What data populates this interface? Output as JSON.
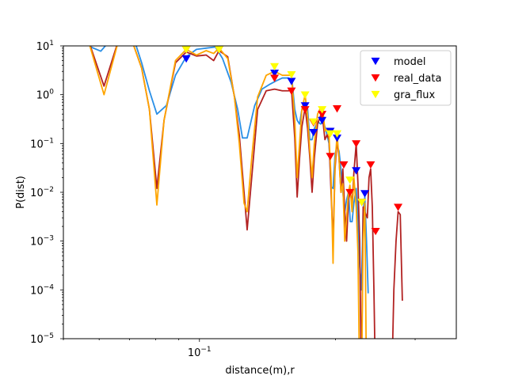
{
  "chart_data": {
    "type": "line",
    "xlabel": "distance(m),r",
    "ylabel": "P(dist)",
    "xscale": "log",
    "yscale": "log",
    "xlim": [
      0.05,
      0.37
    ],
    "ylim": [
      1e-05,
      10
    ],
    "grid": false,
    "legend_position": "top-right",
    "x_tick_labels": [
      {
        "value": 0.1,
        "label": "10",
        "exp": "−1"
      }
    ],
    "y_tick_labels": [
      {
        "value": 1e-05,
        "label": "10",
        "exp": "−5"
      },
      {
        "value": 0.0001,
        "label": "10",
        "exp": "−4"
      },
      {
        "value": 0.001,
        "label": "10",
        "exp": "−3"
      },
      {
        "value": 0.01,
        "label": "10",
        "exp": "−2"
      },
      {
        "value": 0.1,
        "label": "10",
        "exp": "−1"
      },
      {
        "value": 1,
        "label": "10",
        "exp": "0"
      },
      {
        "value": 10,
        "label": "10",
        "exp": "1"
      }
    ],
    "series": [
      {
        "name": "model",
        "color": "#0000ff",
        "line_color": "#2a8fe6",
        "marker": "triangle-down",
        "points": [
          [
            0.0935,
            5.5
          ],
          [
            0.1105,
            9.2
          ],
          [
            0.1466,
            2.8
          ],
          [
            0.1598,
            1.9
          ],
          [
            0.1713,
            0.6
          ],
          [
            0.1788,
            0.17
          ],
          [
            0.1868,
            0.3
          ],
          [
            0.1947,
            0.18
          ],
          [
            0.2016,
            0.13
          ],
          [
            0.2222,
            0.028
          ],
          [
            0.2322,
            0.0095
          ]
        ],
        "curve": [
          [
            0.0575,
            9.5
          ],
          [
            0.0605,
            7.8
          ],
          [
            0.063,
            12
          ],
          [
            0.068,
            15
          ],
          [
            0.072,
            12
          ],
          [
            0.0745,
            4.5
          ],
          [
            0.0775,
            1.2
          ],
          [
            0.0805,
            0.4
          ],
          [
            0.0845,
            0.6
          ],
          [
            0.0885,
            2.5
          ],
          [
            0.0935,
            6
          ],
          [
            0.0985,
            8.5
          ],
          [
            0.1035,
            9
          ],
          [
            0.1085,
            9.5
          ],
          [
            0.1125,
            5.5
          ],
          [
            0.1175,
            1.8
          ],
          [
            0.1215,
            0.5
          ],
          [
            0.1245,
            0.13
          ],
          [
            0.1275,
            0.13
          ],
          [
            0.1325,
            0.6
          ],
          [
            0.1375,
            1.3
          ],
          [
            0.1425,
            1.6
          ],
          [
            0.1475,
            1.9
          ],
          [
            0.1525,
            2.2
          ],
          [
            0.1575,
            2.2
          ],
          [
            0.1605,
            1.7
          ],
          [
            0.1625,
            0.5
          ],
          [
            0.1645,
            0.3
          ],
          [
            0.1665,
            0.25
          ],
          [
            0.1685,
            0.5
          ],
          [
            0.1713,
            0.7
          ],
          [
            0.1735,
            0.5
          ],
          [
            0.1755,
            0.12
          ],
          [
            0.1775,
            0.12
          ],
          [
            0.1795,
            0.2
          ],
          [
            0.1825,
            0.28
          ],
          [
            0.1855,
            0.25
          ],
          [
            0.1875,
            0.3
          ],
          [
            0.1895,
            0.22
          ],
          [
            0.1915,
            0.15
          ],
          [
            0.1935,
            0.1
          ],
          [
            0.1955,
            0.013
          ],
          [
            0.1975,
            0.012
          ],
          [
            0.1995,
            0.06
          ],
          [
            0.2016,
            0.09
          ],
          [
            0.2036,
            0.07
          ],
          [
            0.2056,
            0.03
          ],
          [
            0.2076,
            0.01
          ],
          [
            0.2096,
            0.004
          ],
          [
            0.2116,
            0.007
          ],
          [
            0.2136,
            0.01
          ],
          [
            0.2156,
            0.0025
          ],
          [
            0.2176,
            0.0025
          ],
          [
            0.2196,
            0.006
          ],
          [
            0.2222,
            0.012
          ],
          [
            0.2242,
            0.003
          ],
          [
            0.2262,
            0.0003
          ],
          [
            0.2282,
            0.0001
          ],
          [
            0.2302,
            0.004
          ],
          [
            0.2322,
            0.008
          ],
          [
            0.2342,
            0.001
          ],
          [
            0.2362,
            8.5e-05
          ]
        ]
      },
      {
        "name": "real_data",
        "color": "#ff0000",
        "line_color": "#b22222",
        "marker": "triangle-down",
        "points": [
          [
            0.0935,
            8.5
          ],
          [
            0.1105,
            8.5
          ],
          [
            0.1466,
            2.2
          ],
          [
            0.1598,
            1.2
          ],
          [
            0.1713,
            0.5
          ],
          [
            0.1788,
            0.27
          ],
          [
            0.1868,
            0.4
          ],
          [
            0.1947,
            0.055
          ],
          [
            0.2016,
            0.52
          ],
          [
            0.2086,
            0.037
          ],
          [
            0.2152,
            0.01
          ],
          [
            0.2222,
            0.1
          ],
          [
            0.2286,
            0.0063
          ],
          [
            0.2392,
            0.037
          ],
          [
            0.2453,
            0.0016
          ],
          [
            0.2751,
            0.005
          ]
        ],
        "curve": [
          [
            0.0565,
            15
          ],
          [
            0.0615,
            1.5
          ],
          [
            0.0665,
            15
          ],
          [
            0.0705,
            15
          ],
          [
            0.0745,
            3.5
          ],
          [
            0.0775,
            0.5
          ],
          [
            0.0805,
            0.012
          ],
          [
            0.0835,
            0.3
          ],
          [
            0.0885,
            4.5
          ],
          [
            0.0935,
            7.5
          ],
          [
            0.0985,
            6.2
          ],
          [
            0.1035,
            6.5
          ],
          [
            0.1075,
            5
          ],
          [
            0.1105,
            8
          ],
          [
            0.1155,
            6
          ],
          [
            0.1195,
            0.9
          ],
          [
            0.1225,
            0.15
          ],
          [
            0.1255,
            0.01
          ],
          [
            0.1275,
            0.0017
          ],
          [
            0.1305,
            0.02
          ],
          [
            0.1345,
            0.5
          ],
          [
            0.1405,
            1.2
          ],
          [
            0.1466,
            1.3
          ],
          [
            0.1525,
            1.2
          ],
          [
            0.1575,
            1.2
          ],
          [
            0.1598,
            1.3
          ],
          [
            0.1625,
            0.13
          ],
          [
            0.1645,
            0.008
          ],
          [
            0.1665,
            0.05
          ],
          [
            0.1685,
            0.22
          ],
          [
            0.1713,
            0.55
          ],
          [
            0.1735,
            0.2
          ],
          [
            0.1755,
            0.05
          ],
          [
            0.1775,
            0.01
          ],
          [
            0.1795,
            0.05
          ],
          [
            0.1825,
            0.25
          ],
          [
            0.1855,
            0.38
          ],
          [
            0.1875,
            0.3
          ],
          [
            0.1895,
            0.12
          ],
          [
            0.1915,
            0.15
          ],
          [
            0.1935,
            0.12
          ],
          [
            0.1955,
            0.01
          ],
          [
            0.1975,
            0.001
          ],
          [
            0.1995,
            0.03
          ],
          [
            0.2016,
            0.12
          ],
          [
            0.2036,
            0.05
          ],
          [
            0.2056,
            0.01
          ],
          [
            0.2076,
            0.03
          ],
          [
            0.2096,
            0.004
          ],
          [
            0.2116,
            0.001
          ],
          [
            0.2136,
            0.007
          ],
          [
            0.2156,
            0.01
          ],
          [
            0.2176,
            0.006
          ],
          [
            0.2196,
            0.025
          ],
          [
            0.2222,
            0.1
          ],
          [
            0.2242,
            0.015
          ],
          [
            0.2262,
            0.001
          ],
          [
            0.2282,
            1e-06
          ],
          [
            0.2302,
            0.005
          ],
          [
            0.2322,
            0.004
          ],
          [
            0.2352,
            0.003
          ],
          [
            0.2372,
            0.02
          ],
          [
            0.2392,
            0.03
          ],
          [
            0.2412,
            0.005
          ],
          [
            0.2432,
            0.0001
          ],
          [
            0.2452,
            1e-06
          ],
          [
            0.2662,
            1e-06
          ],
          [
            0.2692,
            0.0001
          ],
          [
            0.2722,
            0.001
          ],
          [
            0.2751,
            0.004
          ],
          [
            0.2781,
            0.0035
          ],
          [
            0.2811,
            6e-05
          ]
        ]
      },
      {
        "name": "gra_flux",
        "color": "#ffff00",
        "line_color": "#ffa500",
        "marker": "triangle-down",
        "points": [
          [
            0.0935,
            8.5
          ],
          [
            0.1105,
            8.5
          ],
          [
            0.1466,
            3.8
          ],
          [
            0.1598,
            2.6
          ],
          [
            0.1713,
            1.0
          ],
          [
            0.1788,
            0.28
          ],
          [
            0.1868,
            0.5
          ],
          [
            0.1947,
            0.16
          ],
          [
            0.2016,
            0.16
          ],
          [
            0.2152,
            0.018
          ],
          [
            0.2286,
            0.0063
          ]
        ],
        "curve": [
          [
            0.0565,
            15
          ],
          [
            0.0615,
            1.0
          ],
          [
            0.0665,
            15
          ],
          [
            0.0705,
            15
          ],
          [
            0.0745,
            3.5
          ],
          [
            0.0775,
            0.5
          ],
          [
            0.0805,
            0.0055
          ],
          [
            0.0835,
            0.3
          ],
          [
            0.0885,
            5
          ],
          [
            0.0935,
            8.5
          ],
          [
            0.0985,
            6.5
          ],
          [
            0.1035,
            8
          ],
          [
            0.1075,
            7
          ],
          [
            0.1105,
            9
          ],
          [
            0.1155,
            5.5
          ],
          [
            0.1195,
            0.9
          ],
          [
            0.1225,
            0.1
          ],
          [
            0.1255,
            0.006
          ],
          [
            0.1275,
            0.004
          ],
          [
            0.1305,
            0.05
          ],
          [
            0.1345,
            0.9
          ],
          [
            0.1405,
            2.5
          ],
          [
            0.1466,
            3
          ],
          [
            0.1525,
            2.5
          ],
          [
            0.1575,
            2.5
          ],
          [
            0.1598,
            2.5
          ],
          [
            0.1625,
            0.3
          ],
          [
            0.1645,
            0.02
          ],
          [
            0.1665,
            0.1
          ],
          [
            0.1685,
            0.5
          ],
          [
            0.1713,
            1.0
          ],
          [
            0.1735,
            0.35
          ],
          [
            0.1755,
            0.07
          ],
          [
            0.1775,
            0.02
          ],
          [
            0.1795,
            0.1
          ],
          [
            0.1825,
            0.4
          ],
          [
            0.1855,
            0.55
          ],
          [
            0.1875,
            0.5
          ],
          [
            0.1895,
            0.18
          ],
          [
            0.1915,
            0.2
          ],
          [
            0.1935,
            0.14
          ],
          [
            0.1955,
            0.02
          ],
          [
            0.1975,
            0.00035
          ],
          [
            0.1995,
            0.04
          ],
          [
            0.2016,
            0.15
          ],
          [
            0.2036,
            0.05
          ],
          [
            0.2056,
            0.01
          ],
          [
            0.2076,
            0.015
          ],
          [
            0.2096,
            0.001
          ],
          [
            0.2116,
            0.003
          ],
          [
            0.2136,
            0.01
          ],
          [
            0.2152,
            0.014
          ],
          [
            0.2176,
            0.004
          ],
          [
            0.2196,
            0.02
          ],
          [
            0.2222,
            0.005
          ],
          [
            0.2242,
            0.0006
          ],
          [
            0.2262,
            1e-06
          ],
          [
            0.2282,
            1e-06
          ],
          [
            0.2302,
            0.001
          ],
          [
            0.2322,
            0.006
          ],
          [
            0.2342,
            1e-06
          ]
        ]
      }
    ]
  }
}
